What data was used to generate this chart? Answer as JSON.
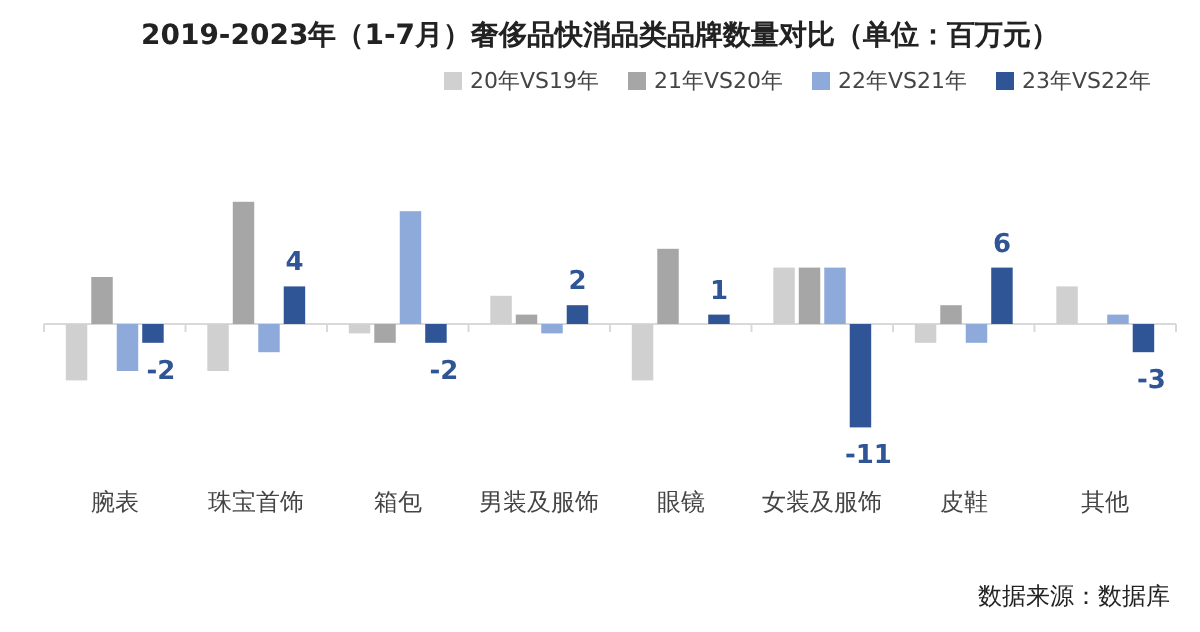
{
  "chart_data": {
    "type": "bar",
    "title": "2019-2023年（1-7月）奢侈品快消品类品牌数量对比（单位：百万元）",
    "categories": [
      "腕表",
      "珠宝首饰",
      "箱包",
      "男装及服饰",
      "眼镜",
      "女装及服饰",
      "皮鞋",
      "其他"
    ],
    "series": [
      {
        "name": "20年VS19年",
        "color": "#d0d0d0",
        "values": [
          -6,
          -5,
          -1,
          3,
          -6,
          6,
          -2,
          4
        ]
      },
      {
        "name": "21年VS20年",
        "color": "#a6a6a6",
        "values": [
          5,
          13,
          -2,
          1,
          8,
          6,
          2,
          0
        ]
      },
      {
        "name": "22年VS21年",
        "color": "#8eaadb",
        "values": [
          -5,
          -3,
          12,
          -1,
          0,
          6,
          -2,
          1
        ]
      },
      {
        "name": "23年VS22年",
        "color": "#2f5597",
        "values": [
          -2,
          4,
          -2,
          2,
          1,
          -11,
          6,
          -3
        ],
        "value_labels": [
          "-2",
          "4",
          "-2",
          "2",
          "1",
          "-11",
          "6",
          "-3"
        ]
      }
    ],
    "legend": "top right",
    "annotations": [
      "数据来源：数据库"
    ]
  }
}
